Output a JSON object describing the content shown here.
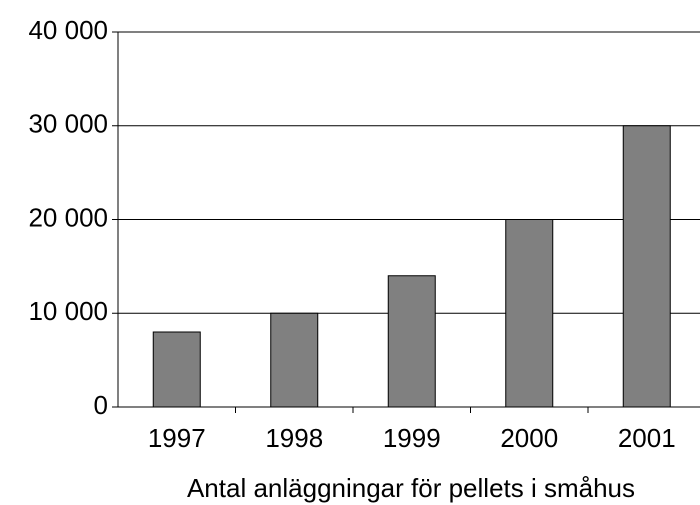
{
  "chart_data": {
    "type": "bar",
    "x_label": "Antal anläggningar för pellets i småhus",
    "categories": [
      "1997",
      "1998",
      "1999",
      "2000",
      "2001"
    ],
    "values": [
      8000,
      10000,
      14000,
      20000,
      30000
    ],
    "color": "#808080",
    "ylim": [
      0,
      40000
    ],
    "yticks": [
      0,
      {
        "value": 10000,
        "label": "10 000"
      },
      {
        "value": 20000,
        "label": "20 000"
      },
      {
        "value": 30000,
        "label": "30 000"
      },
      {
        "value": 40000,
        "label": "40 000"
      }
    ],
    "grid": true
  }
}
